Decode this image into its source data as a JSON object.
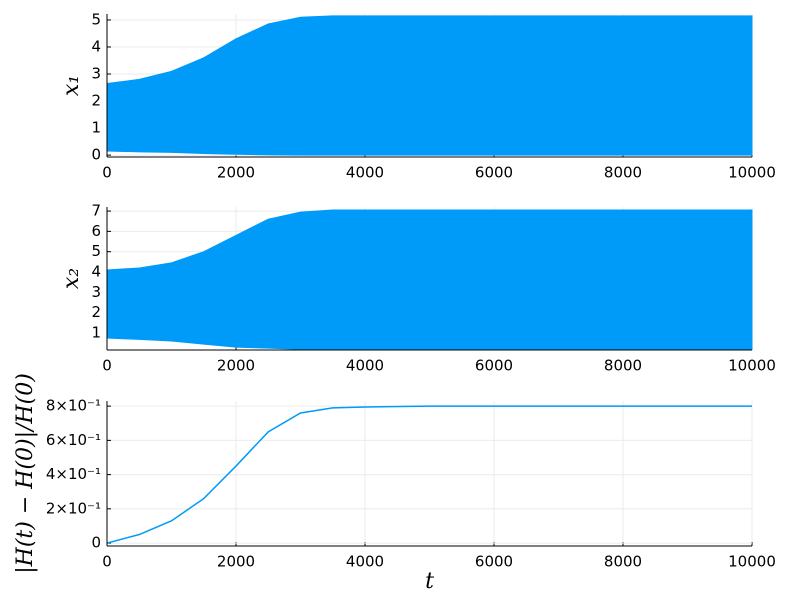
{
  "chart_data": [
    {
      "type": "band",
      "y_label": "x₁",
      "color": "#009af9",
      "grid": true,
      "x": [
        0,
        500,
        1000,
        1500,
        2000,
        2500,
        3000,
        3500,
        4000,
        6000,
        8000,
        10000
      ],
      "upper": [
        2.65,
        2.8,
        3.1,
        3.6,
        4.3,
        4.85,
        5.1,
        5.15,
        5.15,
        5.15,
        5.15,
        5.15
      ],
      "lower": [
        0.15,
        0.12,
        0.1,
        0.06,
        0.03,
        0.01,
        0,
        0,
        0,
        0,
        0,
        0
      ],
      "xlim": [
        0,
        10000
      ],
      "xticks": [
        0,
        2000,
        4000,
        6000,
        8000,
        10000
      ],
      "ylim": [
        -0.07,
        5.22
      ],
      "yticks": [
        0,
        1,
        2,
        3,
        4,
        5
      ]
    },
    {
      "type": "band",
      "y_label": "x₂",
      "color": "#009af9",
      "grid": true,
      "x": [
        0,
        500,
        1000,
        1500,
        2000,
        2500,
        3000,
        3500,
        4000,
        6000,
        8000,
        10000
      ],
      "upper": [
        4.1,
        4.2,
        4.45,
        5.0,
        5.8,
        6.6,
        6.95,
        7.05,
        7.05,
        7.05,
        7.05,
        7.05
      ],
      "lower": [
        0.75,
        0.68,
        0.6,
        0.45,
        0.3,
        0.25,
        0.2,
        0.2,
        0.2,
        0.2,
        0.2,
        0.2
      ],
      "xlim": [
        0,
        10000
      ],
      "xticks": [
        0,
        2000,
        4000,
        6000,
        8000,
        10000
      ],
      "ylim": [
        0.16,
        7.2
      ],
      "yticks": [
        1,
        2,
        3,
        4,
        5,
        6,
        7
      ]
    },
    {
      "type": "line",
      "y_label": "|H(t) − H(0)|/H(0)",
      "x_label": "t",
      "color": "#009af9",
      "grid": true,
      "x": [
        0,
        500,
        1000,
        1500,
        2000,
        2500,
        3000,
        3500,
        4000,
        5000,
        6000,
        7000,
        8000,
        9000,
        10000
      ],
      "values": [
        0,
        0.05,
        0.13,
        0.26,
        0.45,
        0.65,
        0.76,
        0.79,
        0.795,
        0.8,
        0.8,
        0.8,
        0.8,
        0.8,
        0.8
      ],
      "xlim": [
        0,
        10000
      ],
      "xticks": [
        0,
        2000,
        4000,
        6000,
        8000,
        10000
      ],
      "ylim": [
        -0.017,
        0.83
      ],
      "yticks": [
        0,
        {
          "value": 0.2,
          "label": "2×10⁻¹"
        },
        {
          "value": 0.4,
          "label": "4×10⁻¹"
        },
        {
          "value": 0.6,
          "label": "6×10⁻¹"
        },
        {
          "value": 0.8,
          "label": "8×10⁻¹"
        }
      ]
    }
  ]
}
